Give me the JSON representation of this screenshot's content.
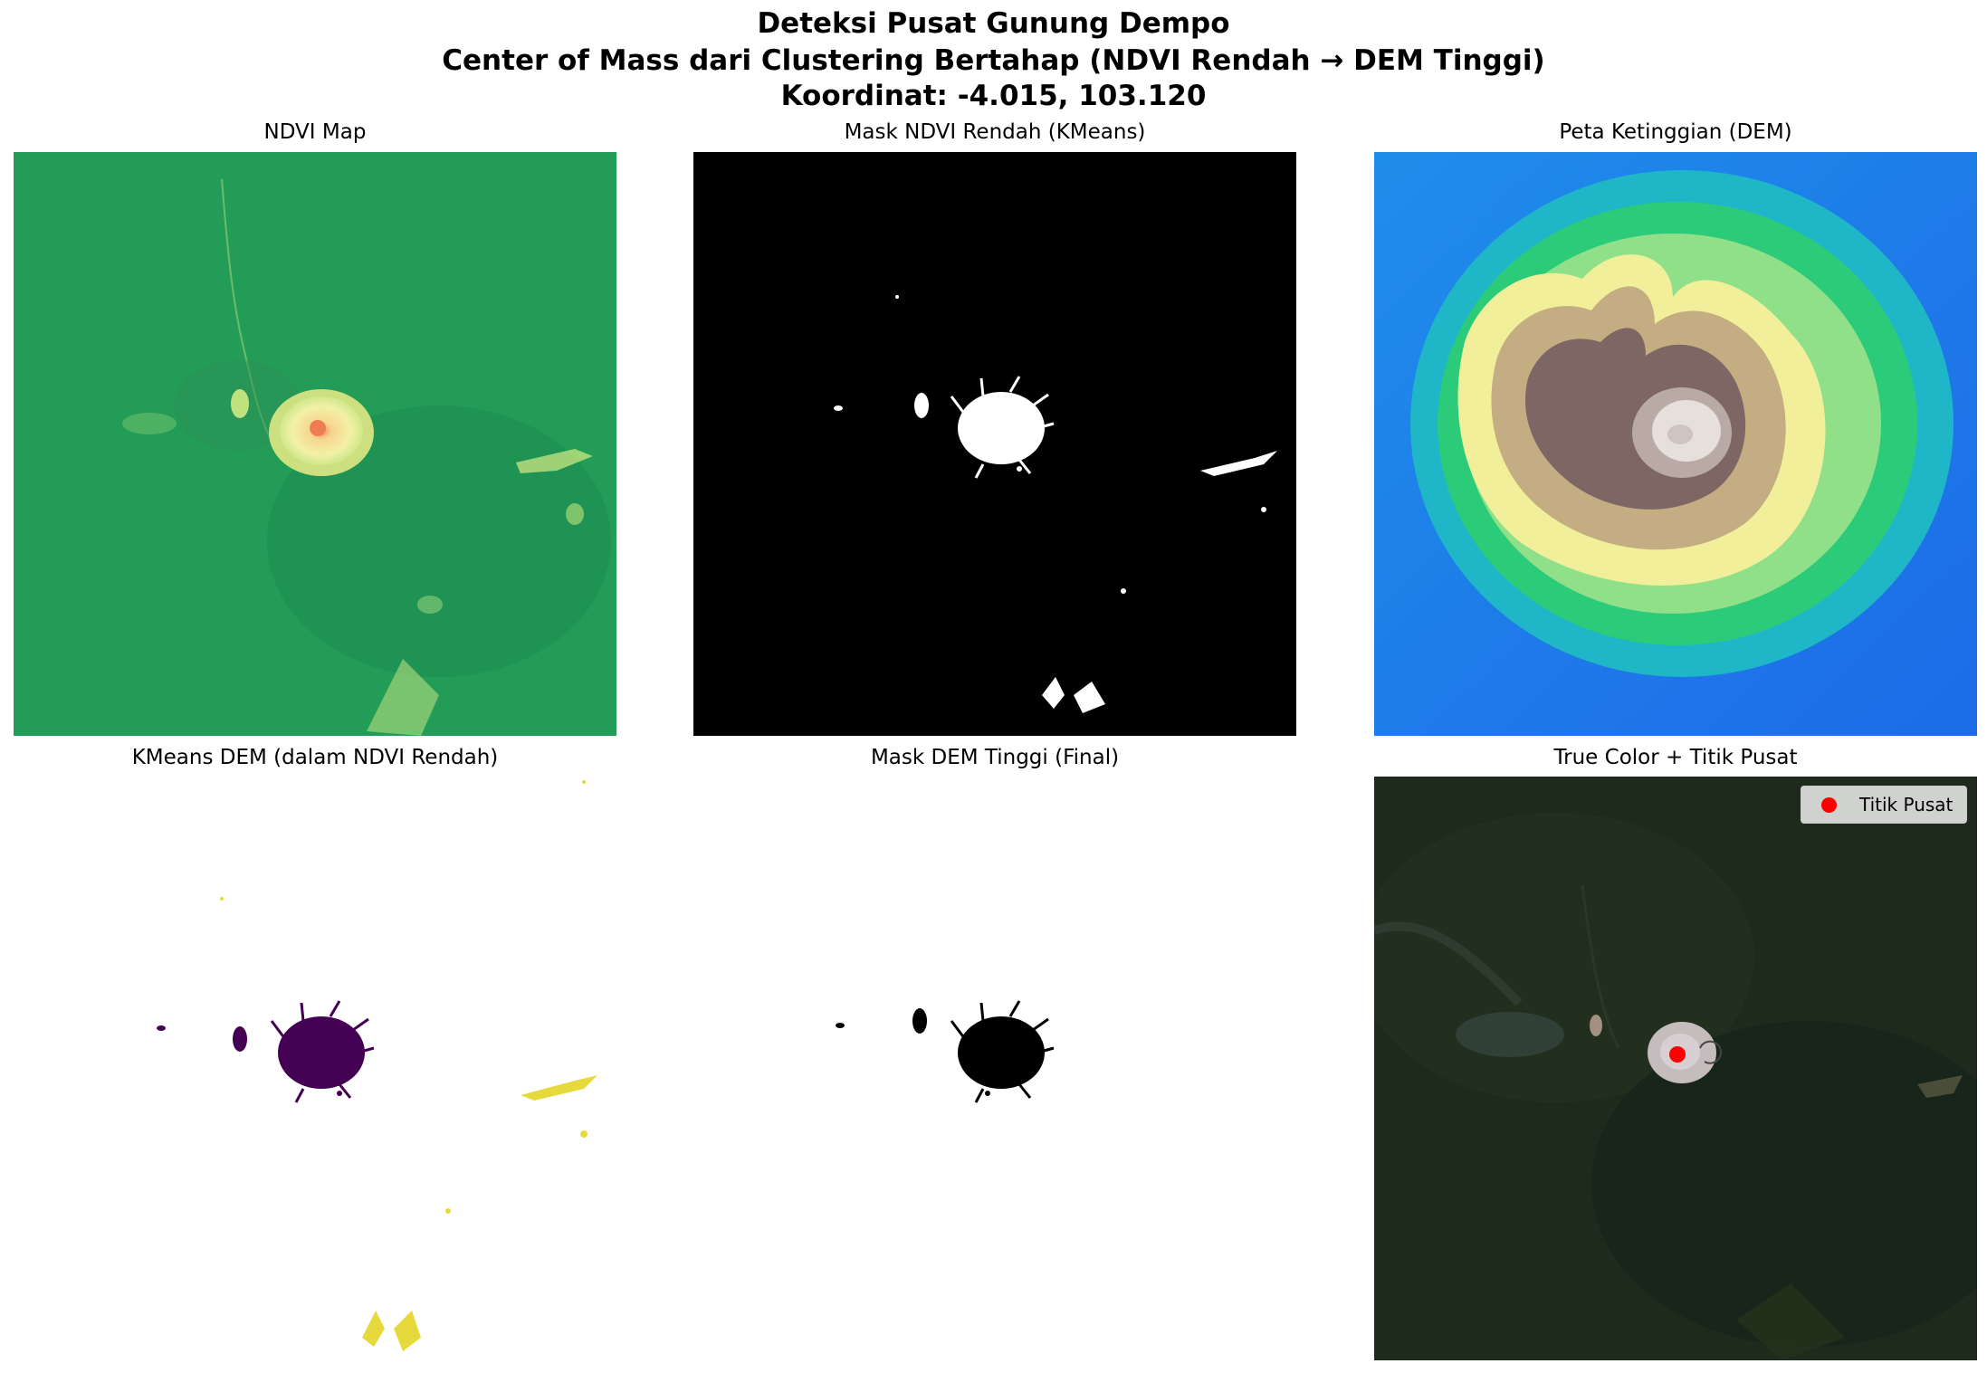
{
  "figure": {
    "title_line1": "Deteksi Pusat Gunung Dempo",
    "title_line2": "Center of Mass dari Clustering Bertahap (NDVI Rendah → DEM Tinggi)",
    "title_line3": "Koordinat: -4.015, 103.120"
  },
  "panels": [
    {
      "title": "NDVI Map",
      "image": "ndvi-map",
      "colormap": "RdYlGn"
    },
    {
      "title": "Mask NDVI Rendah (KMeans)",
      "image": "low-ndvi-mask",
      "colormap": "gray"
    },
    {
      "title": "Peta Ketinggian (DEM)",
      "image": "dem-elevation-map",
      "colormap": "terrain"
    },
    {
      "title": "KMeans DEM (dalam NDVI Rendah)",
      "image": "kmeans-dem-clusters",
      "colormap": "viridis"
    },
    {
      "title": "Mask DEM Tinggi (Final)",
      "image": "high-dem-mask",
      "colormap": "gray_r"
    },
    {
      "title": "True Color + Titik Pusat",
      "image": "true-color-satellite",
      "colormap": "rgb"
    }
  ],
  "legend": {
    "label": "Titik Pusat",
    "marker_color": "#ff0000"
  },
  "colors": {
    "ndvi_green": "#1f9a55",
    "ndvi_light": "#e3ef8a",
    "cluster_dark": "#440154",
    "cluster_yellow": "#e6d93b",
    "dem_low": "#1d6be8",
    "dem_mid": "#f2ef9a",
    "dem_high": "#7d6664",
    "center_point": "#ff0000"
  }
}
